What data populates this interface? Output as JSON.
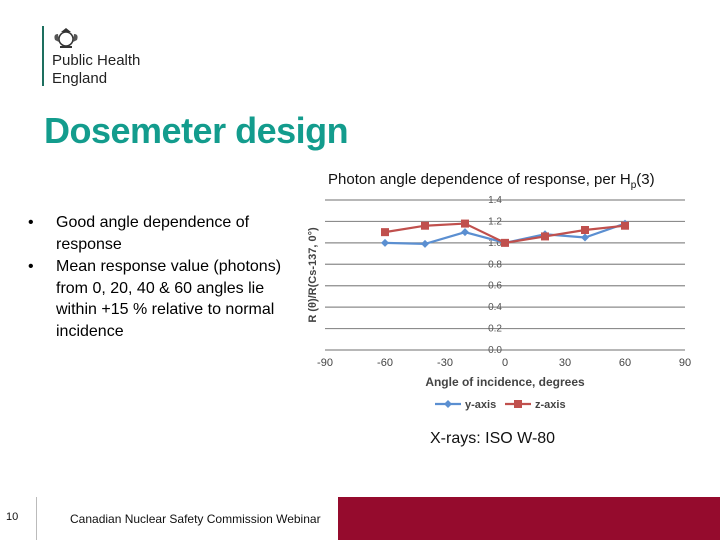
{
  "logo": {
    "org_name": "Public Health\nEngland"
  },
  "slide": {
    "title": "Dosemeter design",
    "chart_caption_main": "Photon angle dependence of response, per H",
    "chart_caption_sub": "p",
    "chart_caption_tail": "(3)",
    "bullets": [
      "Good angle dependence of response",
      "Mean response value (photons) from 0, 20, 40 & 60 angles lie within +15 % relative to normal incidence"
    ],
    "bullet_char": "•",
    "xray_note": "X-rays: ISO W-80"
  },
  "footer": {
    "page_number": "10",
    "text": "Canadian Nuclear Safety Commission Webinar"
  },
  "colors": {
    "title": "#139c8d",
    "footer": "#950b2d",
    "series_y": "#5b8fd1",
    "series_z": "#c0504d"
  },
  "chart_data": {
    "type": "line",
    "xlabel": "Angle of incidence, degrees",
    "ylabel": "R (θ)/R(Cs-137, 0°)",
    "xlim": [
      -90,
      90
    ],
    "ylim": [
      0,
      1.4
    ],
    "xticks": [
      -90,
      -60,
      -30,
      0,
      30,
      60,
      90
    ],
    "yticks": [
      0.0,
      0.2,
      0.4,
      0.6,
      0.8,
      1.0,
      1.2,
      1.4
    ],
    "ytick_labels": [
      "0.0",
      "0.2",
      "0.4",
      "0.6",
      "0.8",
      "1.0",
      "1.2",
      "1.4"
    ],
    "grid": "horizontal",
    "legend_position": "bottom",
    "series": [
      {
        "name": "y-axis",
        "x": [
          -60,
          -40,
          -20,
          0,
          20,
          40,
          60
        ],
        "y": [
          1.0,
          0.99,
          1.1,
          1.0,
          1.08,
          1.05,
          1.18
        ]
      },
      {
        "name": "z-axis",
        "x": [
          -60,
          -40,
          -20,
          0,
          20,
          40,
          60
        ],
        "y": [
          1.1,
          1.16,
          1.18,
          1.0,
          1.06,
          1.12,
          1.16
        ]
      }
    ]
  }
}
